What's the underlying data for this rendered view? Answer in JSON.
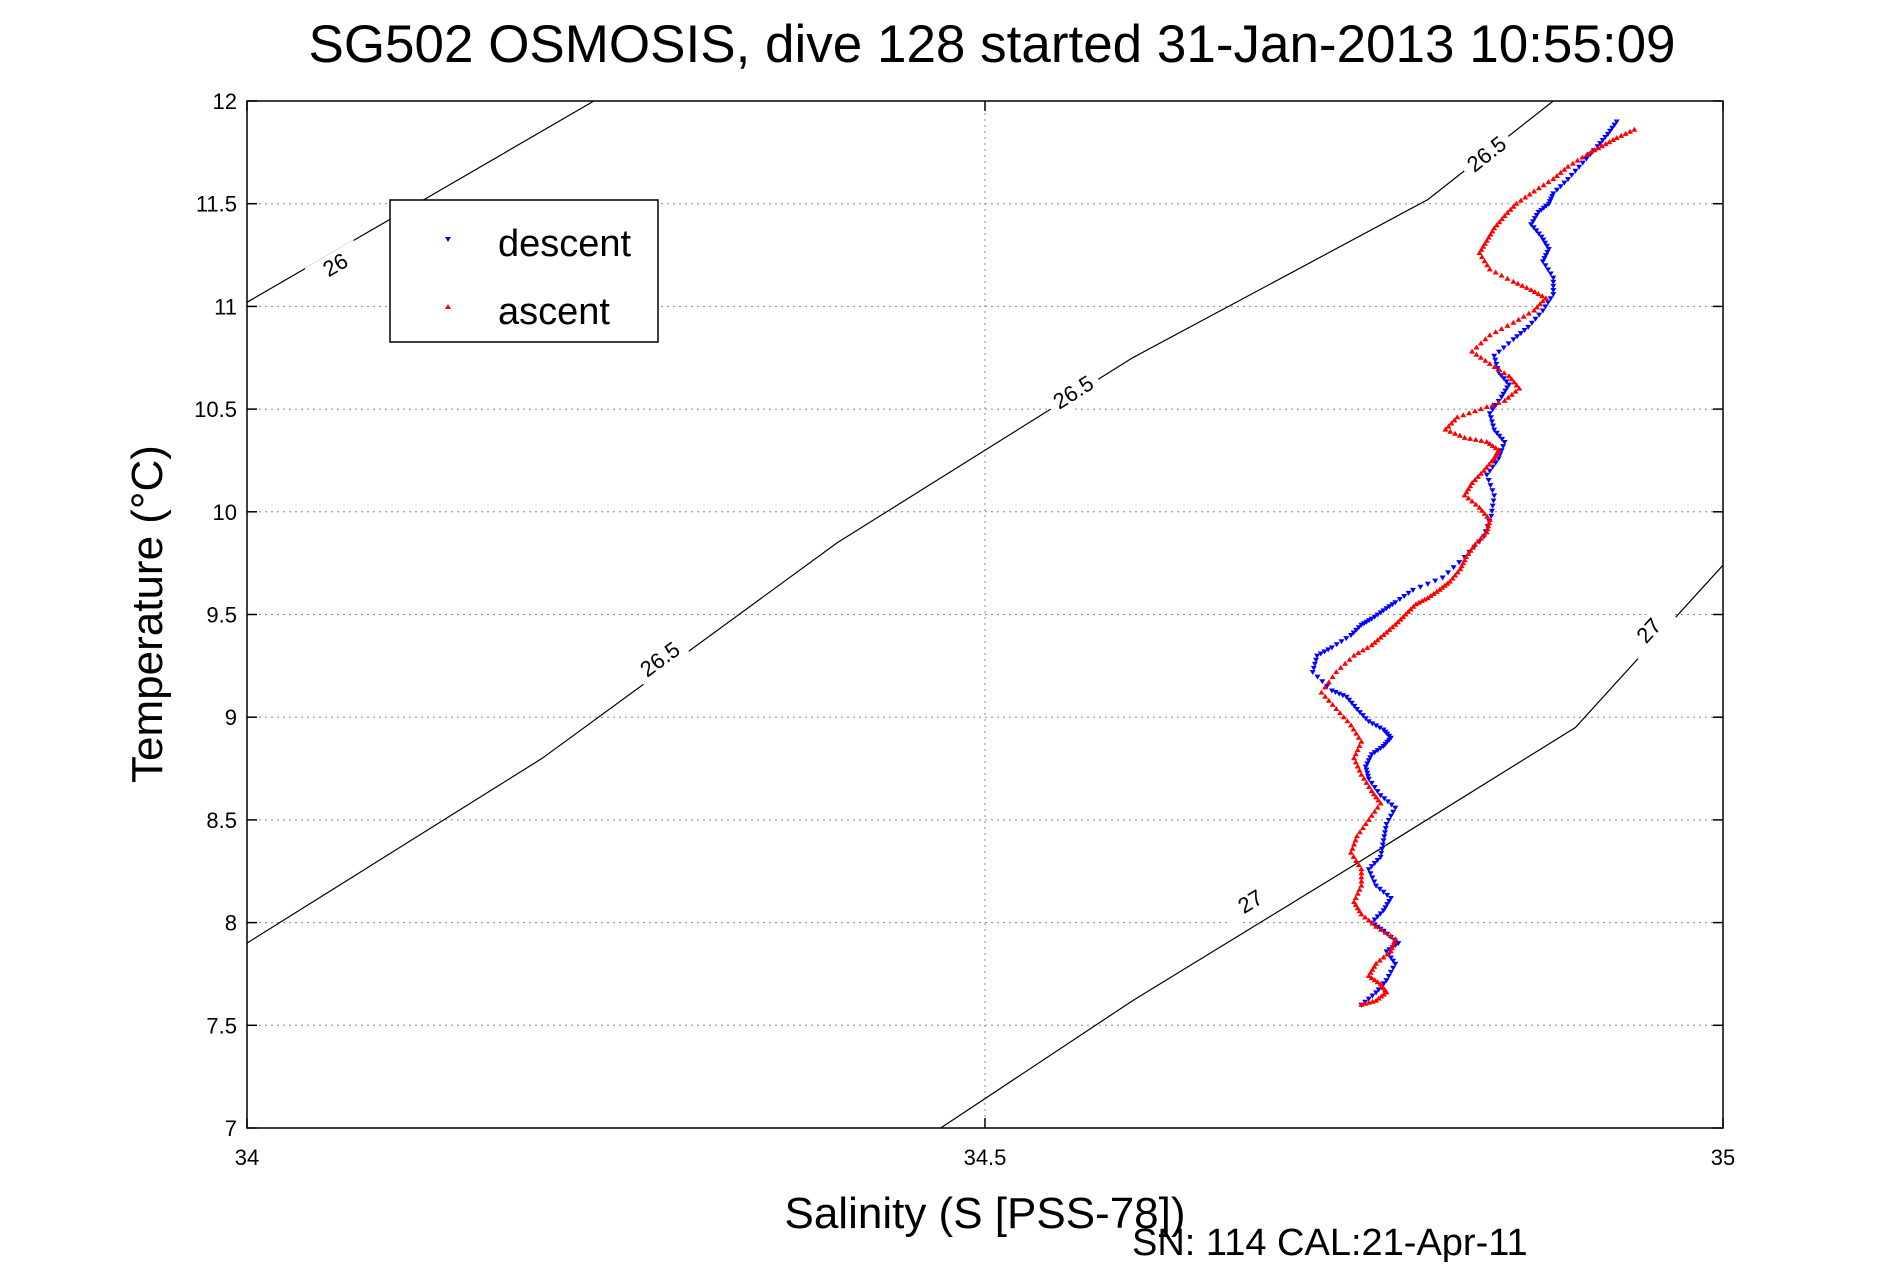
{
  "title": "SG502 OSMOSIS, dive 128 started 31-Jan-2013 10:55:09",
  "footer": "SN: 114  CAL:21-Apr-11",
  "colors": {
    "descent": "#0000ff",
    "ascent": "#ff0000",
    "axis": "#000000",
    "grid": "#888888"
  },
  "chart_data": {
    "type": "scatter",
    "title": "SG502 OSMOSIS, dive 128 started 31-Jan-2013 10:55:09",
    "xlabel": "Salinity (S [PSS-78])",
    "ylabel": "Temperature (°C)",
    "xlim": [
      34,
      35
    ],
    "ylim": [
      7,
      12
    ],
    "xticks": [
      34,
      34.5,
      35
    ],
    "xtick_labels": [
      "34",
      "34.5",
      "35"
    ],
    "yticks": [
      7,
      7.5,
      8,
      8.5,
      9,
      9.5,
      10,
      10.5,
      11,
      11.5,
      12
    ],
    "ytick_labels": [
      "7",
      "7.5",
      "8",
      "8.5",
      "9",
      "9.5",
      "10",
      "10.5",
      "11",
      "11.5",
      "12"
    ],
    "grid": true,
    "legend": {
      "position": "upper-left",
      "entries": [
        "descent",
        "ascent"
      ]
    },
    "density_contours": [
      {
        "label": "26",
        "points": [
          [
            34.0,
            11.02
          ],
          [
            34.235,
            12.0
          ]
        ],
        "label_at": [
          34.06,
          11.2
        ]
      },
      {
        "label": "26.5",
        "points": [
          [
            34.0,
            7.9
          ],
          [
            34.2,
            8.8
          ],
          [
            34.4,
            9.85
          ],
          [
            34.6,
            10.75
          ],
          [
            34.8,
            11.52
          ],
          [
            34.885,
            12.0
          ]
        ],
        "label_at": [
          34.28,
          9.28
        ]
      },
      {
        "label": "26.5",
        "points": [
          [
            34.0,
            7.9
          ],
          [
            34.2,
            8.8
          ],
          [
            34.4,
            9.85
          ],
          [
            34.6,
            10.75
          ],
          [
            34.8,
            11.52
          ],
          [
            34.885,
            12.0
          ]
        ],
        "label_at": [
          34.56,
          10.58
        ]
      },
      {
        "label": "26.5",
        "points": [
          [
            34.0,
            7.9
          ],
          [
            34.2,
            8.8
          ],
          [
            34.4,
            9.85
          ],
          [
            34.6,
            10.75
          ],
          [
            34.8,
            11.52
          ],
          [
            34.885,
            12.0
          ]
        ],
        "label_at": [
          34.84,
          11.74
        ]
      },
      {
        "label": "27",
        "points": [
          [
            34.47,
            7.0
          ],
          [
            34.6,
            7.62
          ],
          [
            34.75,
            8.28
          ],
          [
            34.9,
            8.95
          ],
          [
            35.0,
            9.74
          ]
        ],
        "label_at": [
          34.68,
          8.1
        ]
      },
      {
        "label": "27",
        "points": [
          [
            34.47,
            7.0
          ],
          [
            34.6,
            7.62
          ],
          [
            34.75,
            8.28
          ],
          [
            34.9,
            8.95
          ],
          [
            35.0,
            9.74
          ]
        ],
        "label_at": [
          34.95,
          9.42
        ]
      }
    ],
    "series": [
      {
        "name": "descent",
        "marker": "triangle-down",
        "x": [
          34.755,
          34.765,
          34.772,
          34.778,
          34.772,
          34.78,
          34.77,
          34.762,
          34.77,
          34.775,
          34.765,
          34.76,
          34.768,
          34.77,
          34.772,
          34.778,
          34.768,
          34.76,
          34.758,
          34.762,
          34.77,
          34.775,
          34.77,
          34.76,
          34.752,
          34.745,
          34.735,
          34.722,
          34.725,
          34.735,
          34.748,
          34.755,
          34.762,
          34.77,
          34.778,
          34.79,
          34.81,
          34.825,
          34.838,
          34.843,
          34.845,
          34.84,
          34.848,
          34.852,
          34.845,
          34.842,
          34.85,
          34.855,
          34.848,
          34.845,
          34.858,
          34.868,
          34.878,
          34.885,
          34.885,
          34.878,
          34.882,
          34.877,
          34.87,
          34.875,
          34.882,
          34.885,
          34.895,
          34.905,
          34.915,
          34.922,
          34.928
        ],
        "y": [
          7.6,
          7.66,
          7.72,
          7.8,
          7.86,
          7.9,
          7.96,
          8.0,
          8.06,
          8.12,
          8.18,
          8.26,
          8.32,
          8.4,
          8.48,
          8.56,
          8.62,
          8.7,
          8.76,
          8.82,
          8.86,
          8.9,
          8.94,
          8.98,
          9.04,
          9.1,
          9.13,
          9.22,
          9.3,
          9.34,
          9.4,
          9.45,
          9.48,
          9.52,
          9.56,
          9.62,
          9.68,
          9.78,
          9.88,
          9.98,
          10.08,
          10.18,
          10.26,
          10.34,
          10.4,
          10.48,
          10.56,
          10.62,
          10.68,
          10.76,
          10.84,
          10.9,
          10.98,
          11.06,
          11.14,
          11.22,
          11.28,
          11.34,
          11.4,
          11.46,
          11.5,
          11.55,
          11.62,
          11.7,
          11.78,
          11.84,
          11.9
        ]
      },
      {
        "name": "ascent",
        "marker": "triangle-up",
        "x": [
          34.94,
          34.928,
          34.918,
          34.908,
          34.895,
          34.885,
          34.872,
          34.86,
          34.852,
          34.845,
          34.84,
          34.835,
          34.842,
          34.858,
          34.87,
          34.88,
          34.872,
          34.858,
          34.842,
          34.83,
          34.842,
          34.855,
          34.862,
          34.852,
          34.836,
          34.82,
          34.812,
          34.825,
          34.84,
          34.848,
          34.845,
          34.838,
          34.83,
          34.825,
          34.835,
          34.842,
          34.84,
          34.832,
          34.826,
          34.822,
          34.815,
          34.808,
          34.8,
          34.792,
          34.785,
          34.778,
          34.77,
          34.762,
          34.75,
          34.738,
          34.728,
          34.738,
          34.748,
          34.755,
          34.75,
          34.755,
          34.762,
          34.768,
          34.76,
          34.752,
          34.748,
          34.755,
          34.755,
          34.75,
          34.755,
          34.765,
          34.778,
          34.775,
          34.765,
          34.76,
          34.768,
          34.772,
          34.765,
          34.755
        ],
        "y": [
          11.86,
          11.82,
          11.78,
          11.74,
          11.68,
          11.62,
          11.56,
          11.5,
          11.44,
          11.38,
          11.32,
          11.26,
          11.18,
          11.12,
          11.08,
          11.04,
          10.98,
          10.92,
          10.86,
          10.78,
          10.72,
          10.66,
          10.6,
          10.54,
          10.5,
          10.46,
          10.4,
          10.36,
          10.34,
          10.3,
          10.26,
          10.2,
          10.14,
          10.08,
          10.02,
          9.96,
          9.9,
          9.84,
          9.78,
          9.72,
          9.66,
          9.62,
          9.58,
          9.55,
          9.5,
          9.45,
          9.4,
          9.35,
          9.3,
          9.22,
          9.12,
          9.04,
          8.96,
          8.88,
          8.8,
          8.72,
          8.64,
          8.58,
          8.5,
          8.42,
          8.34,
          8.26,
          8.18,
          8.1,
          8.04,
          7.98,
          7.92,
          7.86,
          7.8,
          7.74,
          7.7,
          7.66,
          7.62,
          7.6
        ]
      }
    ]
  }
}
